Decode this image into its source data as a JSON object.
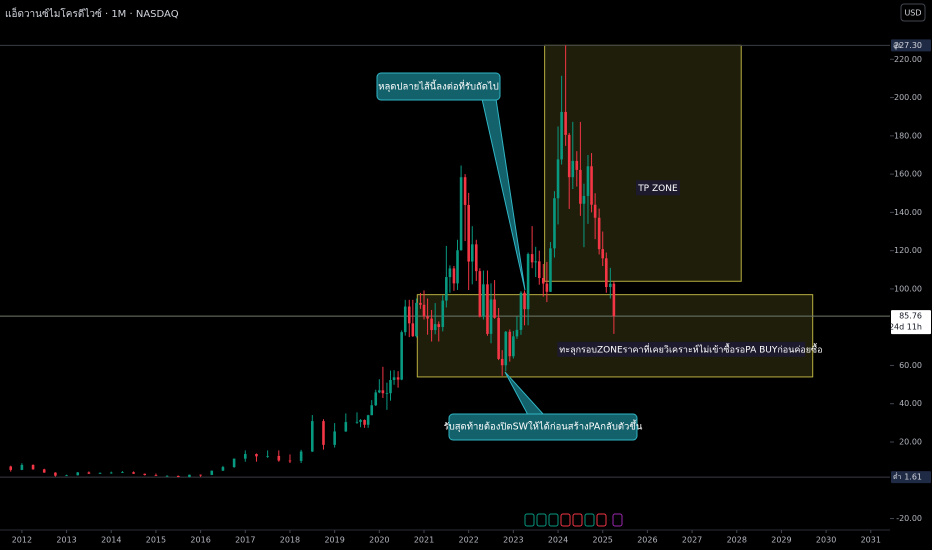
{
  "chart_data": {
    "type": "candlestick",
    "title": "แอ็ดวานซ์ไมโครดีไวซ์ · 1M · NASDAQ",
    "currency": "USD",
    "up_color": "#089981",
    "down_color": "#f23645",
    "x": [
      2011.75,
      2012.0,
      2012.25,
      2012.5,
      2012.75,
      2013.0,
      2013.25,
      2013.5,
      2013.75,
      2014.0,
      2014.25,
      2014.5,
      2014.75,
      2015.0,
      2015.25,
      2015.5,
      2015.75,
      2016.0,
      2016.25,
      2016.5,
      2016.75,
      2017.0,
      2017.25,
      2017.5,
      2017.75,
      2018.0,
      2018.25,
      2018.5,
      2018.75,
      2019.0,
      2019.25,
      2019.5,
      2019.58,
      2019.67,
      2019.75,
      2019.83,
      2019.92,
      2020.0,
      2020.08,
      2020.17,
      2020.25,
      2020.33,
      2020.42,
      2020.5,
      2020.58,
      2020.67,
      2020.75,
      2020.83,
      2020.92,
      2021.0,
      2021.08,
      2021.17,
      2021.25,
      2021.33,
      2021.42,
      2021.5,
      2021.58,
      2021.67,
      2021.75,
      2021.83,
      2021.92,
      2022.0,
      2022.08,
      2022.17,
      2022.25,
      2022.33,
      2022.42,
      2022.5,
      2022.58,
      2022.67,
      2022.75,
      2022.83,
      2022.92,
      2023.0,
      2023.08,
      2023.17,
      2023.25,
      2023.33,
      2023.42,
      2023.5,
      2023.58,
      2023.67,
      2023.75,
      2023.83,
      2023.92,
      2024.0,
      2024.08,
      2024.17,
      2024.25,
      2024.33,
      2024.42,
      2024.5,
      2024.58,
      2024.67,
      2024.75,
      2024.83,
      2024.92,
      2025.0,
      2025.08,
      2025.17,
      2025.25
    ],
    "open": [
      7.2,
      5.4,
      8.0,
      5.7,
      4.0,
      2.4,
      2.6,
      4.1,
      3.4,
      3.9,
      4.0,
      4.2,
      3.4,
      2.7,
      2.3,
      2.3,
      1.7,
      2.9,
      2.8,
      5.0,
      6.9,
      11.3,
      13.7,
      12.5,
      12.7,
      10.3,
      10.1,
      15.0,
      30.9,
      18.5,
      25.5,
      30.4,
      30.5,
      31.5,
      29.0,
      34.0,
      39.2,
      45.9,
      47.0,
      45.5,
      45.5,
      52.4,
      53.8,
      52.6,
      77.4,
      90.8,
      82.0,
      75.3,
      92.7,
      91.7,
      85.6,
      84.5,
      78.5,
      81.6,
      80.1,
      93.9,
      106.2,
      110.7,
      102.9,
      120.2,
      158.4,
      143.9,
      114.3,
      123.3,
      109.3,
      85.5,
      102.4,
      76.5,
      94.5,
      84.9,
      63.4,
      60.1,
      77.6,
      64.8,
      75.2,
      78.6,
      98.0,
      89.4,
      118.2,
      113.9,
      114.4,
      105.7,
      102.8,
      98.5,
      121.2,
      147.4,
      167.7,
      192.5,
      180.5,
      158.4,
      166.9,
      162.2,
      144.5,
      148.6,
      164.1,
      144.0,
      137.2,
      120.8,
      116.0,
      101.0,
      102.7
    ],
    "high": [
      7.6,
      8.9,
      8.3,
      6.0,
      4.2,
      2.9,
      4.3,
      4.6,
      4.0,
      4.5,
      4.8,
      4.6,
      3.5,
      3.5,
      2.6,
      2.4,
      2.9,
      3.0,
      5.1,
      7.5,
      11.3,
      15.6,
      14.0,
      15.6,
      15.6,
      13.5,
      15.9,
      34.1,
      31.9,
      29.9,
      34.9,
      35.5,
      32.0,
      31.8,
      34.2,
      41.9,
      47.3,
      52.8,
      59.3,
      51.0,
      57.3,
      57.5,
      57.0,
      78.3,
      94.3,
      94.3,
      94.3,
      95.0,
      97.9,
      99.2,
      95.0,
      89.0,
      92.6,
      83.0,
      96.6,
      122.5,
      112.3,
      112.0,
      125.7,
      164.5,
      160.0,
      150.2,
      132.8,
      125.7,
      110.8,
      109.6,
      109.6,
      102.9,
      104.6,
      90.0,
      68.0,
      78.0,
      78.8,
      78.0,
      85.7,
      98.8,
      99.2,
      119.0,
      132.8,
      122.0,
      120.0,
      113.0,
      114.1,
      124.5,
      151.1,
      184.9,
      211.4,
      227.3,
      181.5,
      187.3,
      172.0,
      187.3,
      155.0,
      170.0,
      171.0,
      150.0,
      142.0,
      130.0,
      119.0,
      111.0,
      104.0
    ],
    "low": [
      4.5,
      5.3,
      5.5,
      3.9,
      1.9,
      2.3,
      2.5,
      3.3,
      3.3,
      3.4,
      3.8,
      3.3,
      2.5,
      2.2,
      2.0,
      1.61,
      1.6,
      1.8,
      2.7,
      4.9,
      6.5,
      9.7,
      9.7,
      11.7,
      9.7,
      9.0,
      9.0,
      14.8,
      16.0,
      17.1,
      25.3,
      29.5,
      27.7,
      27.4,
      27.4,
      34.0,
      38.8,
      45.5,
      43.0,
      36.8,
      41.6,
      49.9,
      48.4,
      52.3,
      75.6,
      74.8,
      74.9,
      74.6,
      89.6,
      84.0,
      76.1,
      72.5,
      76.3,
      72.5,
      77.8,
      90.3,
      98.0,
      99.0,
      99.5,
      120.0,
      125.0,
      99.4,
      102.4,
      104.2,
      85.1,
      84.0,
      75.5,
      71.6,
      84.4,
      62.8,
      54.6,
      57.0,
      62.0,
      63.6,
      73.9,
      76.0,
      81.0,
      81.0,
      110.8,
      106.2,
      102.2,
      96.0,
      93.1,
      98.4,
      116.4,
      133.7,
      165.0,
      174.8,
      141.8,
      152.2,
      153.5,
      138.2,
      121.8,
      134.0,
      140.0,
      126.0,
      118.0,
      112.0,
      98.0,
      95.0,
      76.5
    ],
    "close": [
      5.4,
      8.0,
      5.7,
      4.0,
      2.4,
      2.6,
      4.1,
      3.4,
      3.9,
      4.0,
      4.2,
      3.4,
      2.7,
      2.3,
      2.3,
      1.7,
      2.9,
      2.8,
      5.0,
      6.9,
      11.3,
      13.7,
      12.5,
      12.7,
      10.3,
      10.1,
      15.0,
      30.9,
      18.5,
      25.5,
      30.4,
      30.5,
      31.5,
      29.0,
      34.0,
      39.2,
      45.9,
      47.0,
      45.5,
      45.5,
      52.4,
      53.8,
      52.6,
      77.4,
      90.8,
      82.0,
      75.3,
      92.7,
      91.7,
      85.6,
      84.5,
      78.5,
      81.6,
      80.1,
      93.9,
      106.2,
      110.7,
      102.9,
      120.2,
      158.4,
      143.9,
      114.3,
      123.3,
      109.3,
      85.5,
      102.4,
      76.5,
      94.5,
      84.9,
      63.4,
      60.1,
      77.6,
      64.8,
      75.2,
      78.6,
      98.0,
      89.4,
      118.2,
      113.9,
      114.4,
      105.7,
      102.8,
      98.5,
      121.2,
      147.4,
      167.7,
      192.5,
      180.5,
      158.4,
      166.9,
      162.2,
      144.5,
      148.6,
      164.1,
      144.0,
      137.2,
      120.8,
      116.0,
      101.0,
      102.7,
      85.76
    ],
    "xlim": [
      2011.51,
      2031.43
    ],
    "xticks": [
      2012,
      2013,
      2014,
      2015,
      2016,
      2017,
      2018,
      2019,
      2020,
      2021,
      2022,
      2023,
      2024,
      2025,
      2026,
      2027,
      2028,
      2029,
      2030,
      2031
    ],
    "ylim": [
      -26,
      251
    ],
    "yticks": [
      {
        "value": 220,
        "label": "220.00"
      },
      {
        "value": 200,
        "label": "200.00"
      },
      {
        "value": 180,
        "label": "180.00"
      },
      {
        "value": 160,
        "label": "160.00"
      },
      {
        "value": 140,
        "label": "140.00"
      },
      {
        "value": 120,
        "label": "120.00"
      },
      {
        "value": 100,
        "label": "100.00"
      },
      {
        "value": 60,
        "label": "60.00"
      },
      {
        "value": 40,
        "label": "40.00"
      },
      {
        "value": 20,
        "label": "20.00"
      },
      {
        "value": -20,
        "label": "-20.00"
      }
    ],
    "price_lines": [
      {
        "name": "high",
        "tag": "สูง",
        "value": 227.3,
        "label": "227.30"
      },
      {
        "name": "last",
        "value": 85.76,
        "label": "85.76",
        "countdown": "24d 11h"
      },
      {
        "name": "low",
        "tag": "ต่ำ",
        "value": 1.61,
        "label": "1.61"
      }
    ],
    "zones": [
      {
        "x": [
          2023.7,
          2028.1
        ],
        "y": [
          104,
          227.3
        ],
        "label": "TP ZONE"
      },
      {
        "x": [
          2020.85,
          2029.7
        ],
        "y": [
          54,
          97
        ],
        "label": "ทะลุกรอบZONEราคาที่เคยวิเคราะห์ไม่เข้าซื้อรอPA BUYก่อนค่อยซื้อ"
      }
    ],
    "callouts": [
      "หลุดปลายไส้นี้ลงต่อที่รับถัดไป",
      "รับสุดท้ายต้องปิดSWให้ได้ก่อนสร้างPAกลับตัวขึ้น"
    ]
  }
}
